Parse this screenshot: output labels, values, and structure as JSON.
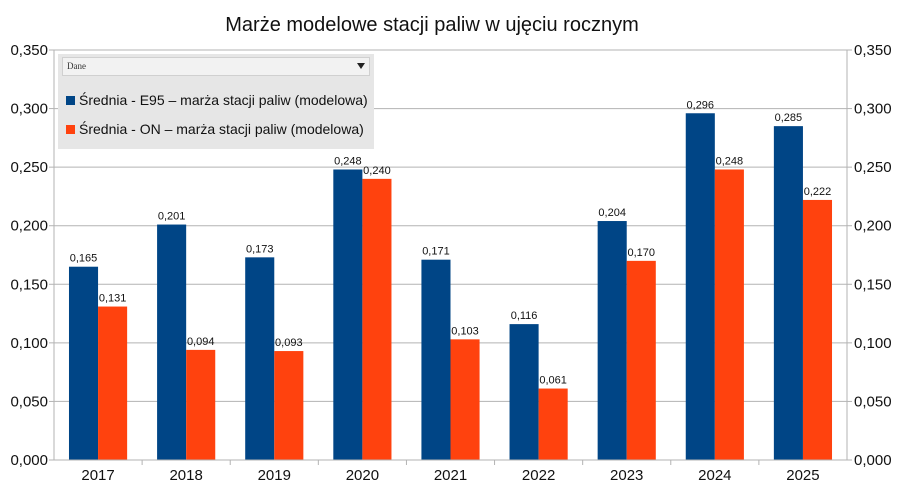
{
  "chart_data": {
    "type": "bar",
    "title": "Marże modelowe stacji paliw w ujęciu rocznym",
    "xlabel": "",
    "ylabel": "",
    "ylim": [
      0,
      0.35
    ],
    "yticks": [
      "0,000",
      "0,050",
      "0,100",
      "0,150",
      "0,200",
      "0,250",
      "0,300",
      "0,350"
    ],
    "categories": [
      "2017",
      "2018",
      "2019",
      "2020",
      "2021",
      "2022",
      "2023",
      "2024",
      "2025"
    ],
    "grid": true,
    "legend_position": "top-left",
    "series": [
      {
        "name": "Średnia - E95 – marża stacji paliw (modelowa)",
        "color": "#004586",
        "values": [
          0.165,
          0.201,
          0.173,
          0.248,
          0.171,
          0.116,
          0.204,
          0.296,
          0.285
        ],
        "labels": [
          "0,165",
          "0,201",
          "0,173",
          "0,248",
          "0,171",
          "0,116",
          "0,204",
          "0,296",
          "0,285"
        ]
      },
      {
        "name": "Średnia - ON – marża stacji paliw (modelowa)",
        "color": "#ff420e",
        "values": [
          0.131,
          0.094,
          0.093,
          0.24,
          0.103,
          0.061,
          0.17,
          0.248,
          0.222
        ],
        "labels": [
          "0,131",
          "0,094",
          "0,093",
          "0,240",
          "0,103",
          "0,061",
          "0,170",
          "0,248",
          "0,222"
        ]
      }
    ]
  },
  "legend": {
    "dropdown_label": "Dane"
  }
}
